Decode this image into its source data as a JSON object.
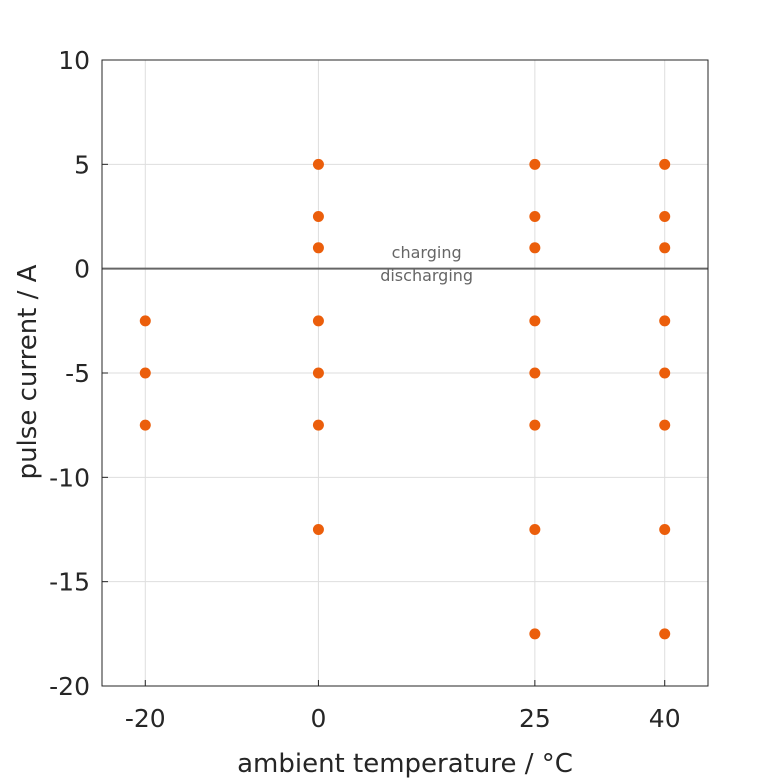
{
  "chart_data": {
    "type": "scatter",
    "title": "",
    "xlabel": "ambient temperature / °C",
    "ylabel": "pulse current / A",
    "xlim": [
      -25,
      45
    ],
    "ylim": [
      -20,
      10
    ],
    "xticks": [
      -20,
      0,
      25,
      40
    ],
    "yticks": [
      10,
      5,
      0,
      -5,
      -10,
      -15,
      -20
    ],
    "grid": true,
    "marker_color": "#EB5E0B",
    "zero_line_color": "#666666",
    "annotations": [
      {
        "text": "charging",
        "x": 12.5,
        "y": 0.5
      },
      {
        "text": "discharging",
        "x": 12.5,
        "y": -0.6
      }
    ],
    "points": [
      {
        "x": -20,
        "y": -2.5
      },
      {
        "x": -20,
        "y": -5
      },
      {
        "x": -20,
        "y": -7.5
      },
      {
        "x": 0,
        "y": 5
      },
      {
        "x": 0,
        "y": 2.5
      },
      {
        "x": 0,
        "y": 1
      },
      {
        "x": 0,
        "y": -2.5
      },
      {
        "x": 0,
        "y": -5
      },
      {
        "x": 0,
        "y": -7.5
      },
      {
        "x": 0,
        "y": -12.5
      },
      {
        "x": 25,
        "y": 5
      },
      {
        "x": 25,
        "y": 2.5
      },
      {
        "x": 25,
        "y": 1
      },
      {
        "x": 25,
        "y": -2.5
      },
      {
        "x": 25,
        "y": -5
      },
      {
        "x": 25,
        "y": -7.5
      },
      {
        "x": 25,
        "y": -12.5
      },
      {
        "x": 25,
        "y": -17.5
      },
      {
        "x": 40,
        "y": 5
      },
      {
        "x": 40,
        "y": 2.5
      },
      {
        "x": 40,
        "y": 1
      },
      {
        "x": 40,
        "y": -2.5
      },
      {
        "x": 40,
        "y": -5
      },
      {
        "x": 40,
        "y": -7.5
      },
      {
        "x": 40,
        "y": -12.5
      },
      {
        "x": 40,
        "y": -17.5
      }
    ]
  }
}
